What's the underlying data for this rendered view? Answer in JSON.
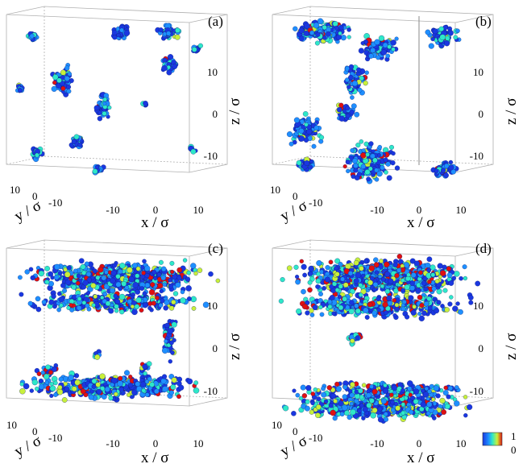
{
  "colors": {
    "low": "#1a37e0",
    "mid_low": "#1e8fff",
    "mid": "#2ee8c8",
    "mid_high": "#c8f03a",
    "high": "#e01010",
    "box_line": "#b0b0b0"
  },
  "colorbar": {
    "max_label": "1",
    "min_label": "0"
  },
  "panels": [
    {
      "id": "a",
      "letter": "(a)",
      "axes": {
        "x_label": "x / σ",
        "y_label": "y / σ",
        "z_label": "z / σ",
        "x_ticks": [
          "-10",
          "0",
          "10"
        ],
        "y_ticks": [
          "10",
          "0",
          "-10"
        ],
        "z_ticks": [
          "10",
          "0",
          "-10"
        ]
      }
    },
    {
      "id": "b",
      "letter": "(b)",
      "axes": {
        "x_label": "x / σ",
        "y_label": "y / σ",
        "z_label": "z / σ",
        "x_ticks": [
          "-10",
          "0",
          "10"
        ],
        "y_ticks": [
          "10",
          "0",
          "-10"
        ],
        "z_ticks": [
          "10",
          "0",
          "-10"
        ]
      }
    },
    {
      "id": "c",
      "letter": "(c)",
      "axes": {
        "x_label": "x / σ",
        "y_label": "y / σ",
        "z_label": "z / σ",
        "x_ticks": [
          "-10",
          "0",
          "10"
        ],
        "y_ticks": [
          "10",
          "0",
          "-10"
        ],
        "z_ticks": [
          "10",
          "0",
          "-10"
        ]
      }
    },
    {
      "id": "d",
      "letter": "(d)",
      "axes": {
        "x_label": "x / σ",
        "y_label": "y / σ",
        "z_label": "z / σ",
        "x_ticks": [
          "-10",
          "0",
          "10"
        ],
        "y_ticks": [
          "10",
          "0",
          "-10"
        ],
        "z_ticks": [
          "10",
          "0",
          "-10"
        ]
      }
    }
  ]
}
